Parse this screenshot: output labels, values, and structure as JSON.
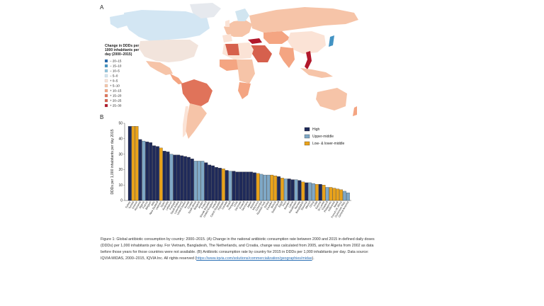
{
  "panel_a": {
    "label": "A",
    "legend_title_lines": [
      "Change in DDDs per",
      "1000 inhabitants per",
      "day (2000–2015)"
    ],
    "legend_items": [
      {
        "label": "− 20–15",
        "color": "#2166ac"
      },
      {
        "label": "− 15–10",
        "color": "#4393c3"
      },
      {
        "label": "− 10–5",
        "color": "#92c5de"
      },
      {
        "label": "− 5–0",
        "color": "#d1e5f0"
      },
      {
        "label": "+ 0–5",
        "color": "#fbe3d6"
      },
      {
        "label": "+ 5–10",
        "color": "#f6c4a8"
      },
      {
        "label": "+ 10–15",
        "color": "#f4a582"
      },
      {
        "label": "+ 15–20",
        "color": "#e0735a"
      },
      {
        "label": "+ 20–25",
        "color": "#d6604d"
      },
      {
        "label": "+ 25–30",
        "color": "#b2182b"
      }
    ]
  },
  "panel_b": {
    "label": "B"
  },
  "chart_data": {
    "type": "bar",
    "ylabel": "DDDs per 1,000 inhabitants per day 2015",
    "ylim": [
      0,
      50
    ],
    "yticks": [
      0,
      10,
      20,
      30,
      40,
      50
    ],
    "legend_placement": "top-right",
    "groups": [
      {
        "name": "High",
        "color": "#1f2a5a"
      },
      {
        "name": "Upper-middle",
        "color": "#7fa8c6"
      },
      {
        "name": "Low- & lower-middle",
        "color": "#e8a21b"
      }
    ],
    "categories": [
      "Turkey",
      "Tunisia",
      "Greece",
      "Romania",
      "Algeria",
      "France",
      "Belgium",
      "Italy",
      "New Zealand",
      "Vietnam",
      "Spain",
      "Australia",
      "Lebanon",
      "Portugal",
      "Saudi Arabia",
      "Luxembourg",
      "United States",
      "Kuwait",
      "Croatia",
      "South Africa",
      "Bulgaria",
      "Jordan",
      "Poland",
      "Slovak Republic",
      "United Kingdom",
      "Ireland",
      "Czech Republic",
      "Pakistan",
      "Canada",
      "Brazil",
      "Hungary",
      "Chile",
      "Denmark",
      "Finland",
      "Germany",
      "Japan",
      "Austria",
      "Morocco",
      "Colombia",
      "Russian Fed.",
      "Serbia",
      "Ecuador",
      "Bolivia",
      "Switzerland",
      "Egypt",
      "Peru",
      "Sweden",
      "Latvia",
      "Kazakhstan",
      "Norway",
      "Bangladesh",
      "Slovenia",
      "Mexico",
      "China",
      "India",
      "Estonia",
      "Sri Lanka",
      "Thailand",
      "Philippines",
      "Indonesia",
      "Nepal",
      "French W. Africa",
      "Dominican Rep.",
      "Central America"
    ],
    "group_index": [
      0,
      2,
      2,
      0,
      1,
      0,
      0,
      0,
      0,
      2,
      0,
      0,
      1,
      0,
      0,
      0,
      0,
      0,
      0,
      1,
      1,
      1,
      0,
      0,
      0,
      0,
      0,
      2,
      0,
      1,
      0,
      0,
      0,
      0,
      0,
      0,
      0,
      2,
      1,
      1,
      1,
      2,
      2,
      0,
      2,
      1,
      0,
      0,
      1,
      0,
      2,
      0,
      1,
      1,
      2,
      0,
      2,
      1,
      2,
      2,
      2,
      2,
      1,
      1
    ],
    "values": [
      48,
      48,
      48,
      39.5,
      38.5,
      38,
      37.5,
      35.5,
      35,
      34,
      32,
      31.5,
      30,
      29.5,
      29.5,
      29,
      28.5,
      28,
      27,
      25.5,
      25.5,
      25.5,
      24.5,
      23,
      22.5,
      21.5,
      21,
      20.5,
      19.5,
      19,
      19,
      18.5,
      18.5,
      18.5,
      18.5,
      18.5,
      18,
      17.5,
      17,
      16.5,
      16.5,
      16.5,
      16,
      15.5,
      14.5,
      14,
      14,
      13.5,
      13.5,
      13,
      12,
      11.5,
      11.5,
      11,
      10.5,
      10.5,
      10,
      8.5,
      8.5,
      8,
      7.5,
      7,
      6,
      5
    ]
  },
  "caption": {
    "text": "Figure 1: Global antibiotic consumption by country: 2000–2015. (A) Change in the national antibiotic consumption rate between 2000 and 2015 in defined daily doses (DDDs) per 1,000 inhabitants per day. For Vietnam, Bangladesh, The Netherlands, and Croatia, change was calculated from 2005, and for Algeria from 2002 as data before those years for those countries were not available. (B) Antibiotic consumption rate by country for 2015 in DDDs per 1,000 inhabitants per day. Data source: IQVIA MIDAS, 2000–2015, IQVIA Inc. All rights reserved (",
    "link_text": "https://www.iqvia.com/solutions/commercialization/geographies/midas",
    "text_end": ")."
  }
}
